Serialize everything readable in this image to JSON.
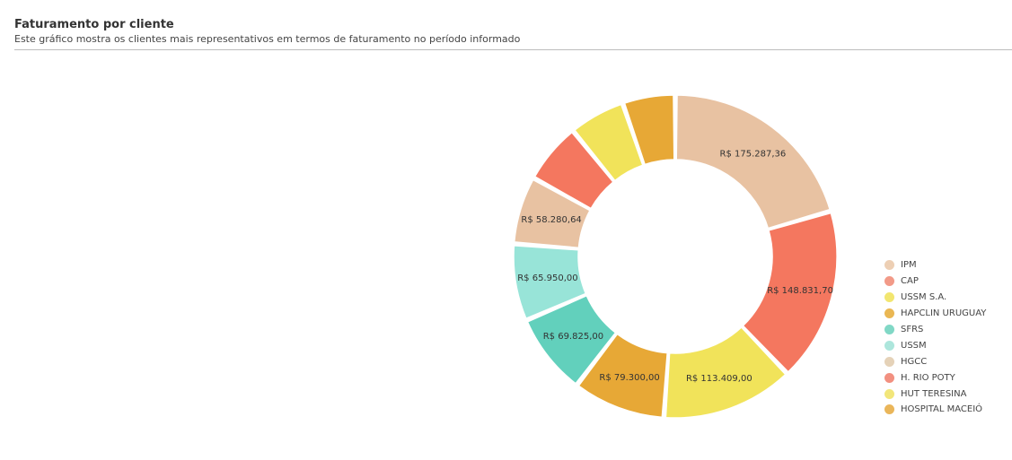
{
  "header": {
    "title": "Faturamento por cliente",
    "subtitle": "Este gráfico mostra os clientes mais representativos em termos de faturamento no período informado"
  },
  "chart_data": {
    "type": "pie",
    "variant": "donut",
    "title": "Faturamento por cliente",
    "slices": [
      {
        "name": "IPM",
        "value": 175287.36,
        "label": "R$ 175.287,36",
        "color": "#e8c2a2"
      },
      {
        "name": "CAP",
        "value": 148831.7,
        "label": "R$ 148.831,70",
        "color": "#f4775f"
      },
      {
        "name": "USSM S.A.",
        "value": 113409.0,
        "label": "R$ 113.409,00",
        "color": "#f1e35a"
      },
      {
        "name": "HAPCLIN URUGUAY",
        "value": 79300.0,
        "label": "R$ 79.300,00",
        "color": "#e7a836"
      },
      {
        "name": "SFRS",
        "value": 69825.0,
        "label": "R$ 69.825,00",
        "color": "#62d0bc"
      },
      {
        "name": "USSM",
        "value": 65950.0,
        "label": "R$ 65.950,00",
        "color": "#98e4d8"
      },
      {
        "name": "HGCC",
        "value": 58280.64,
        "label": "R$ 58.280,64",
        "color": "#e8c2a2"
      },
      {
        "name": "H. RIO POTY",
        "value": 52000,
        "label": "",
        "color": "#f4775f"
      },
      {
        "name": "HUT TERESINA",
        "value": 48000,
        "label": "",
        "color": "#f1e35a"
      },
      {
        "name": "HOSPITAL MACEIÓ",
        "value": 45000,
        "label": "",
        "color": "#e7a836"
      }
    ],
    "legend_position": "right",
    "legend_colors": [
      "#edcfb4",
      "#f29a88",
      "#f2e670",
      "#eab753",
      "#81d8c6",
      "#ade6dc",
      "#e5d2b8",
      "#f29080",
      "#f2e67a",
      "#eab65a"
    ]
  }
}
